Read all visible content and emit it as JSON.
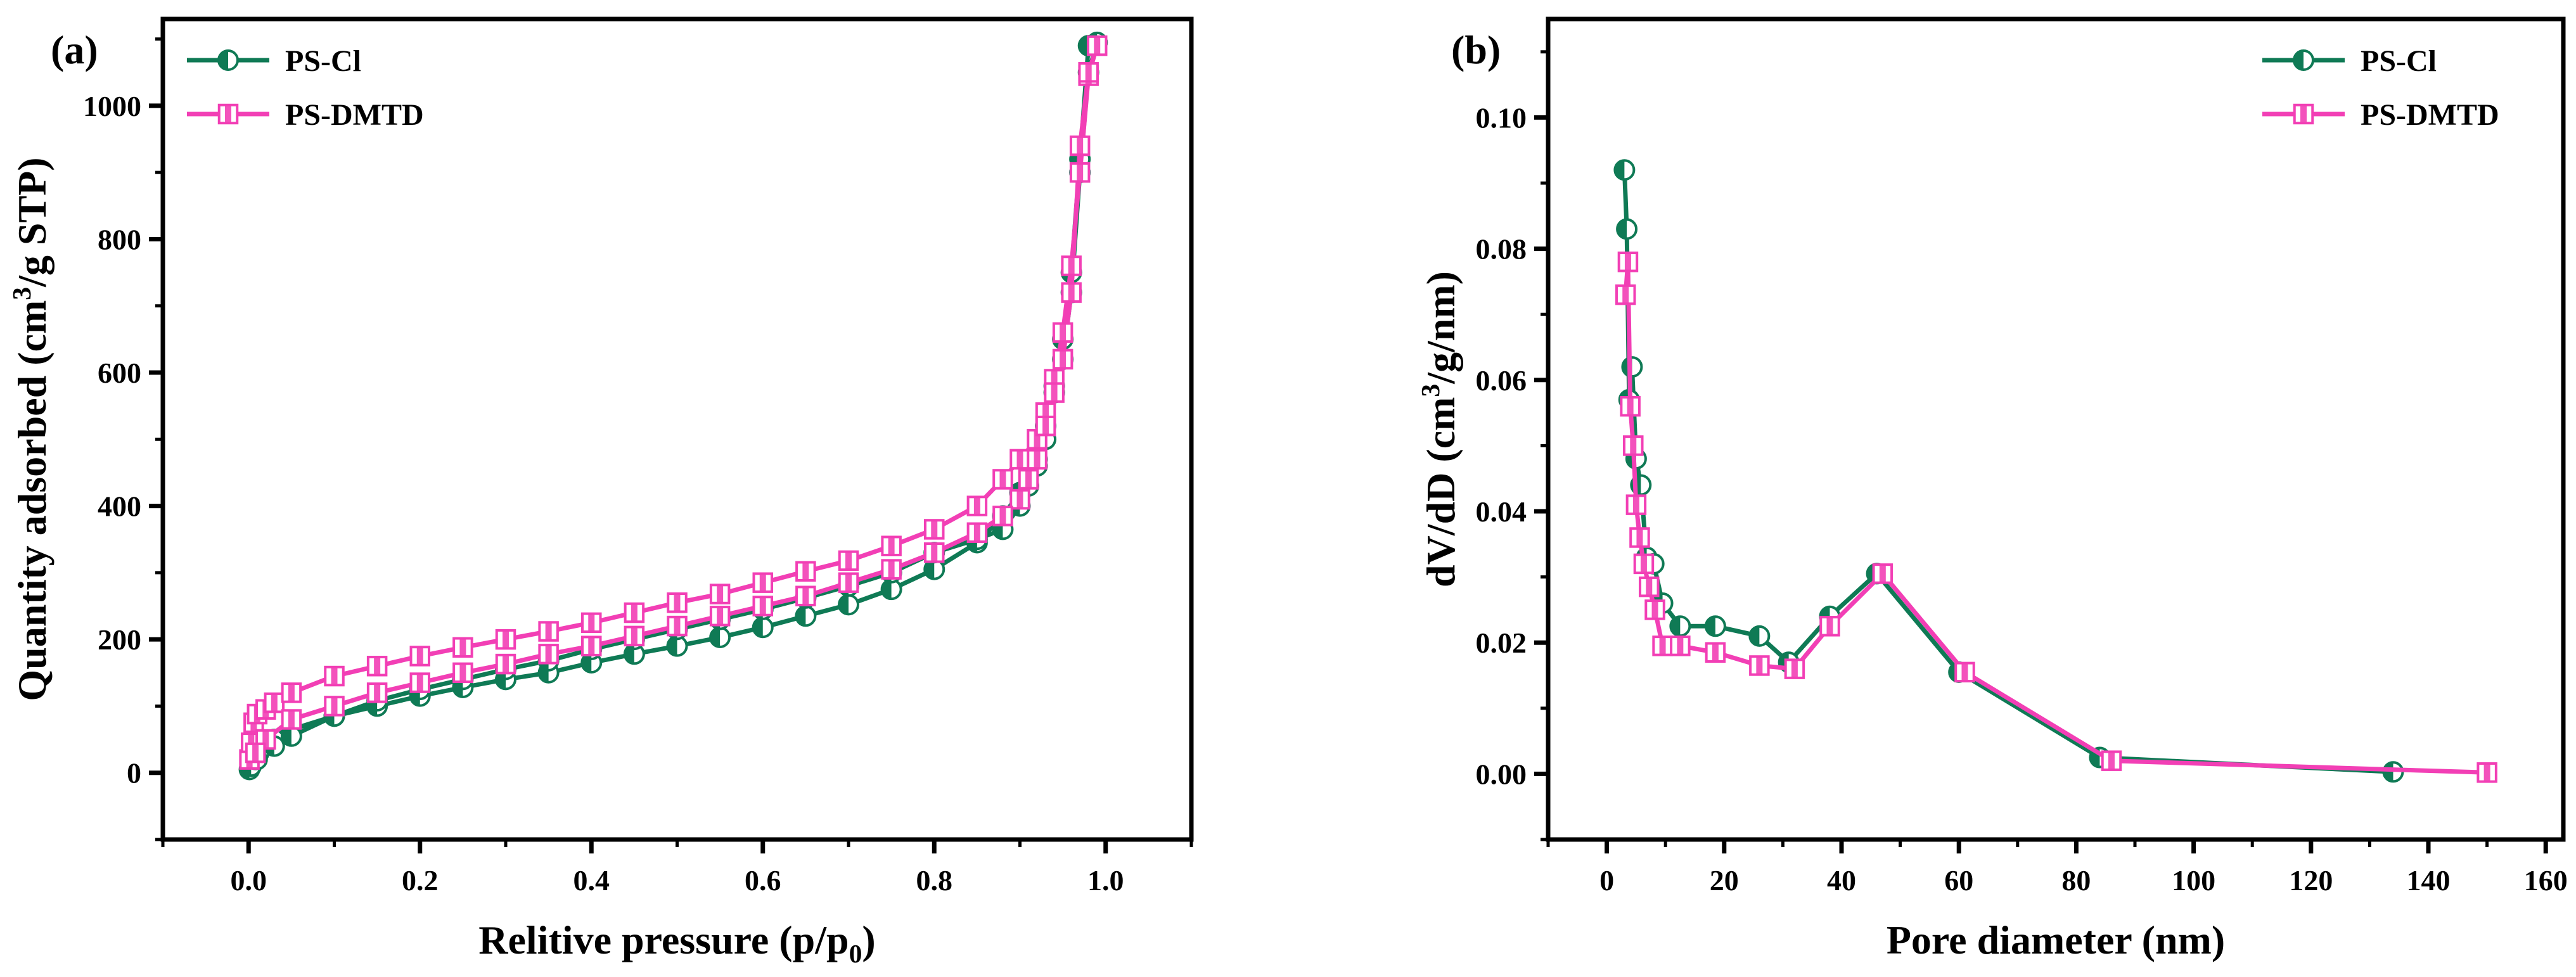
{
  "colors": {
    "ps_cl": "#0f7a55",
    "ps_dmtd": "#f23fb5",
    "axis": "#000000"
  },
  "chart_data": [
    {
      "type": "line",
      "panel_label": "(a)",
      "xlabel": "Relitive pressure (p/p",
      "xlabel_sub": "0",
      "xlabel_end": ")",
      "ylabel": "Quantity adsorbed (cm",
      "ylabel_sup": "3",
      "ylabel_end": "/g STP)",
      "xlim": [
        -0.1,
        1.1
      ],
      "ylim": [
        -100,
        1130
      ],
      "xticks": [
        "0.0",
        "0.2",
        "0.4",
        "0.6",
        "0.8",
        "1.0"
      ],
      "yticks": [
        "0",
        "200",
        "400",
        "600",
        "800",
        "1000"
      ],
      "legend": [
        "PS-Cl",
        "PS-DMTD"
      ],
      "legend_position": "top-left",
      "series": [
        {
          "name": "PS-Cl",
          "marker": "circle",
          "color": "#0f7a55",
          "x": [
            0.001,
            0.003,
            0.008,
            0.012,
            0.03,
            0.05,
            0.1,
            0.15,
            0.2,
            0.25,
            0.3,
            0.35,
            0.4,
            0.45,
            0.5,
            0.55,
            0.6,
            0.65,
            0.7,
            0.75,
            0.8,
            0.85,
            0.88,
            0.9,
            0.92,
            0.93,
            0.94,
            0.95,
            0.96,
            0.97,
            0.98,
            0.99,
            0.98,
            0.97,
            0.96,
            0.95,
            0.94,
            0.93,
            0.92,
            0.91,
            0.9,
            0.88,
            0.85,
            0.8,
            0.75,
            0.7,
            0.65,
            0.6,
            0.55,
            0.5,
            0.45,
            0.4,
            0.35,
            0.3,
            0.25,
            0.2,
            0.15,
            0.1,
            0.05,
            0.03,
            0.01
          ],
          "y": [
            5,
            10,
            20,
            30,
            50,
            65,
            85,
            100,
            115,
            128,
            140,
            150,
            165,
            178,
            190,
            203,
            218,
            235,
            252,
            275,
            305,
            345,
            385,
            420,
            470,
            520,
            580,
            650,
            750,
            920,
            1090,
            1095,
            1050,
            900,
            720,
            620,
            570,
            500,
            460,
            430,
            400,
            365,
            350,
            330,
            300,
            280,
            262,
            245,
            230,
            215,
            200,
            185,
            168,
            155,
            140,
            125,
            108,
            85,
            55,
            40,
            20
          ]
        },
        {
          "name": "PS-DMTD",
          "marker": "square",
          "color": "#f23fb5",
          "x": [
            0.001,
            0.003,
            0.006,
            0.01,
            0.02,
            0.03,
            0.05,
            0.1,
            0.15,
            0.2,
            0.25,
            0.3,
            0.35,
            0.4,
            0.45,
            0.5,
            0.55,
            0.6,
            0.65,
            0.7,
            0.75,
            0.8,
            0.85,
            0.88,
            0.9,
            0.92,
            0.93,
            0.94,
            0.95,
            0.96,
            0.97,
            0.98,
            0.99,
            0.98,
            0.97,
            0.96,
            0.95,
            0.94,
            0.93,
            0.92,
            0.91,
            0.9,
            0.88,
            0.85,
            0.8,
            0.75,
            0.7,
            0.65,
            0.6,
            0.55,
            0.5,
            0.45,
            0.4,
            0.35,
            0.3,
            0.25,
            0.2,
            0.15,
            0.1,
            0.05,
            0.02,
            0.008
          ],
          "y": [
            20,
            45,
            75,
            88,
            95,
            105,
            120,
            145,
            160,
            175,
            188,
            200,
            212,
            225,
            240,
            255,
            268,
            285,
            302,
            318,
            340,
            365,
            400,
            440,
            470,
            500,
            540,
            590,
            660,
            760,
            900,
            1045,
            1090,
            1050,
            940,
            720,
            620,
            570,
            520,
            470,
            440,
            410,
            385,
            360,
            330,
            305,
            285,
            265,
            250,
            235,
            220,
            205,
            190,
            178,
            163,
            150,
            135,
            120,
            100,
            80,
            50,
            30
          ]
        }
      ]
    },
    {
      "type": "line",
      "panel_label": "(b)",
      "xlabel": "Pore diameter (nm)",
      "ylabel": "dV/dD (cm",
      "ylabel_sup": "3",
      "ylabel_end": "/g/nm)",
      "xlim": [
        -10,
        163
      ],
      "ylim": [
        -0.01,
        0.115
      ],
      "xticks": [
        "0",
        "20",
        "40",
        "60",
        "80",
        "100",
        "120",
        "140",
        "160"
      ],
      "yticks": [
        "0.00",
        "0.02",
        "0.04",
        "0.06",
        "0.08",
        "0.10"
      ],
      "legend": [
        "PS-Cl",
        "PS-DMTD"
      ],
      "legend_position": "top-right",
      "series": [
        {
          "name": "PS-Cl",
          "marker": "circle",
          "color": "#0f7a55",
          "x": [
            3.0,
            3.4,
            3.8,
            4.3,
            5.0,
            5.8,
            6.8,
            8.0,
            9.5,
            12.5,
            18.5,
            26,
            31,
            38,
            46,
            60,
            84,
            134
          ],
          "y": [
            0.092,
            0.083,
            0.057,
            0.062,
            0.048,
            0.044,
            0.033,
            0.032,
            0.026,
            0.0225,
            0.0225,
            0.021,
            0.017,
            0.024,
            0.0305,
            0.0155,
            0.0025,
            0.0003
          ]
        },
        {
          "name": "PS-DMTD",
          "marker": "square",
          "color": "#f23fb5",
          "x": [
            3.2,
            3.6,
            4.0,
            4.5,
            5.0,
            5.6,
            6.3,
            7.2,
            8.2,
            9.5,
            12.5,
            18.5,
            26,
            32,
            38,
            47,
            61,
            86,
            150
          ],
          "y": [
            0.073,
            0.078,
            0.056,
            0.05,
            0.041,
            0.036,
            0.032,
            0.0285,
            0.025,
            0.0195,
            0.0195,
            0.0185,
            0.0165,
            0.016,
            0.0225,
            0.0305,
            0.0155,
            0.002,
            0.0002
          ]
        }
      ]
    }
  ]
}
